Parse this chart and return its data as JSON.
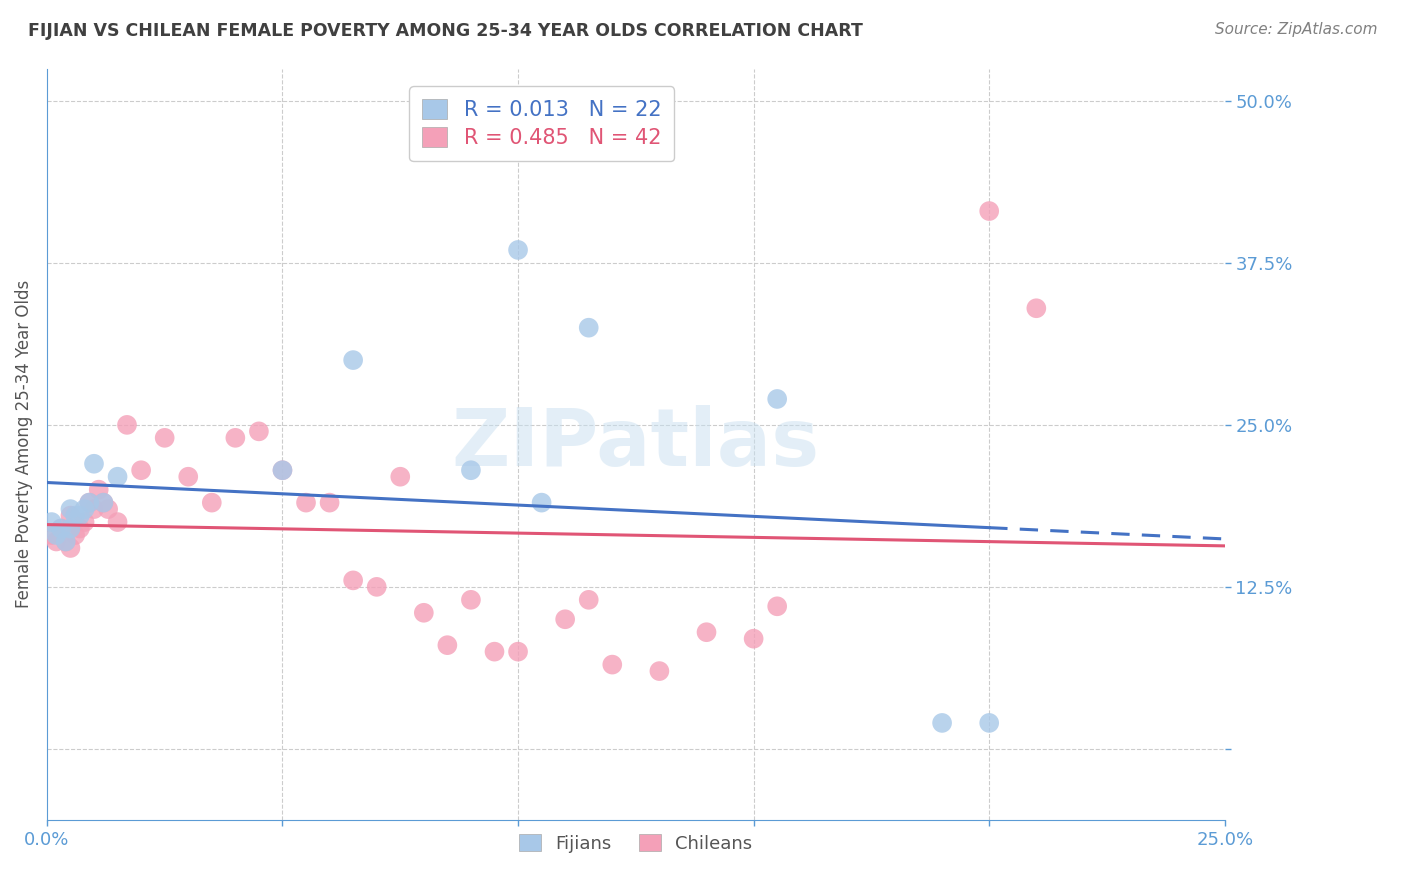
{
  "title": "FIJIAN VS CHILEAN FEMALE POVERTY AMONG 25-34 YEAR OLDS CORRELATION CHART",
  "source": "Source: ZipAtlas.com",
  "ylabel": "Female Poverty Among 25-34 Year Olds",
  "xlim": [
    0.0,
    0.25
  ],
  "ylim": [
    -0.055,
    0.525
  ],
  "yticks": [
    0.0,
    0.125,
    0.25,
    0.375,
    0.5
  ],
  "yticklabels": [
    "",
    "12.5%",
    "25.0%",
    "37.5%",
    "50.0%"
  ],
  "xtick_positions": [
    0.0,
    0.05,
    0.1,
    0.15,
    0.2,
    0.25
  ],
  "xticklabels": [
    "0.0%",
    "",
    "",
    "",
    "",
    "25.0%"
  ],
  "fijian_color": "#a8c8e8",
  "chilean_color": "#f4a0b8",
  "fijian_line_color": "#4472c4",
  "chilean_line_color": "#e05575",
  "legend_line1": "R = 0.013   N = 22",
  "legend_line2": "R = 0.485   N = 42",
  "watermark": "ZIPatlas",
  "fijian_x": [
    0.001,
    0.002,
    0.003,
    0.004,
    0.005,
    0.005,
    0.006,
    0.007,
    0.008,
    0.009,
    0.01,
    0.012,
    0.015,
    0.05,
    0.065,
    0.09,
    0.1,
    0.105,
    0.115,
    0.155,
    0.19,
    0.2
  ],
  "fijian_y": [
    0.175,
    0.165,
    0.17,
    0.16,
    0.17,
    0.185,
    0.18,
    0.18,
    0.185,
    0.19,
    0.22,
    0.19,
    0.21,
    0.215,
    0.3,
    0.215,
    0.385,
    0.19,
    0.325,
    0.27,
    0.02,
    0.02
  ],
  "chilean_x": [
    0.001,
    0.002,
    0.003,
    0.004,
    0.005,
    0.005,
    0.006,
    0.007,
    0.008,
    0.009,
    0.01,
    0.011,
    0.012,
    0.013,
    0.015,
    0.017,
    0.02,
    0.025,
    0.03,
    0.035,
    0.04,
    0.045,
    0.05,
    0.055,
    0.06,
    0.065,
    0.07,
    0.075,
    0.08,
    0.085,
    0.09,
    0.095,
    0.1,
    0.11,
    0.115,
    0.12,
    0.13,
    0.14,
    0.15,
    0.155,
    0.2,
    0.21
  ],
  "chilean_y": [
    0.165,
    0.16,
    0.17,
    0.16,
    0.155,
    0.18,
    0.165,
    0.17,
    0.175,
    0.19,
    0.185,
    0.2,
    0.19,
    0.185,
    0.175,
    0.25,
    0.215,
    0.24,
    0.21,
    0.19,
    0.24,
    0.245,
    0.215,
    0.19,
    0.19,
    0.13,
    0.125,
    0.21,
    0.105,
    0.08,
    0.115,
    0.075,
    0.075,
    0.1,
    0.115,
    0.065,
    0.06,
    0.09,
    0.085,
    0.11,
    0.415,
    0.34
  ],
  "grid_color": "#cccccc",
  "axis_color": "#5b9bd5",
  "tick_color": "#5b9bd5",
  "title_color": "#404040",
  "source_color": "#808080"
}
